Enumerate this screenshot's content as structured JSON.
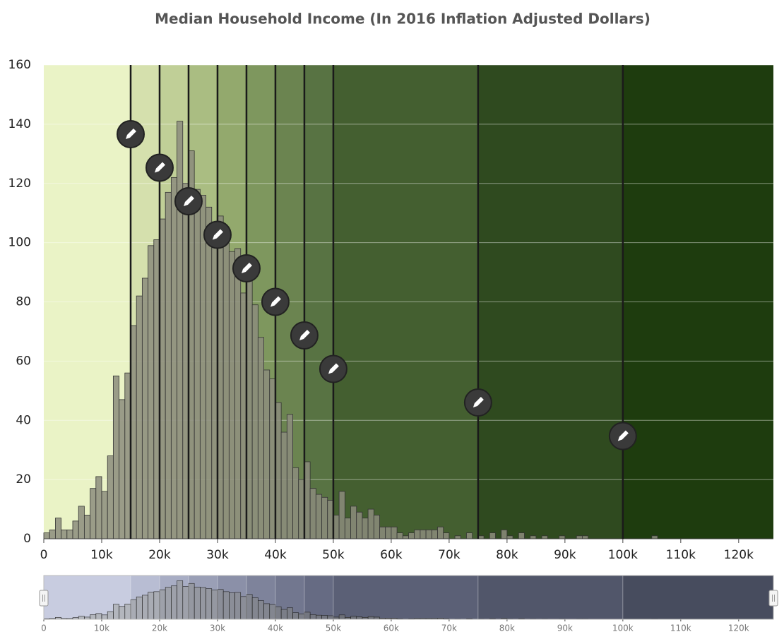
{
  "chart_data": {
    "type": "histogram",
    "title": "Median Household Income (In 2016 Inflation Adjusted Dollars)",
    "bins": [
      0,
      1000,
      2000,
      3000,
      4000,
      5000,
      6000,
      7000,
      8000,
      9000,
      10000,
      11000,
      12000,
      13000,
      14000,
      15000,
      16000,
      17000,
      18000,
      19000,
      20000,
      21000,
      22000,
      23000,
      24000,
      25000,
      26000,
      27000,
      28000,
      29000,
      30000,
      31000,
      32000,
      33000,
      34000,
      35000,
      36000,
      37000,
      38000,
      39000,
      40000,
      41000,
      42000,
      43000,
      44000,
      45000,
      46000,
      47000,
      48000,
      49000,
      50000,
      51000,
      52000,
      53000,
      54000,
      55000,
      56000,
      57000,
      58000,
      59000,
      60000,
      61000,
      62000,
      63000,
      64000,
      65000,
      66000,
      67000,
      68000,
      69000,
      70000,
      71000,
      72000,
      73000,
      74000,
      75000,
      76000,
      77000,
      78000,
      79000,
      80000,
      81000,
      82000,
      83000,
      84000,
      85000,
      86000,
      87000,
      88000,
      89000,
      90000,
      91000,
      92000,
      93000,
      94000,
      95000,
      96000,
      97000,
      98000,
      99000,
      100000,
      101000,
      102000,
      103000,
      104000,
      105000,
      106000,
      107000,
      108000,
      109000,
      110000,
      111000,
      112000,
      113000,
      114000,
      115000,
      116000,
      117000,
      118000,
      119000,
      120000,
      121000,
      122000,
      123000,
      124000,
      125000,
      126000
    ],
    "values": [
      2,
      3,
      7,
      3,
      3,
      6,
      11,
      8,
      17,
      21,
      16,
      28,
      55,
      47,
      56,
      72,
      82,
      88,
      99,
      101,
      108,
      117,
      122,
      141,
      120,
      131,
      118,
      116,
      112,
      107,
      109,
      101,
      97,
      98,
      83,
      91,
      79,
      68,
      57,
      54,
      46,
      36,
      42,
      24,
      20,
      26,
      17,
      15,
      14,
      13,
      8,
      16,
      7,
      11,
      9,
      7,
      10,
      8,
      4,
      4,
      4,
      2,
      1,
      2,
      3,
      3,
      3,
      3,
      4,
      2,
      0,
      1,
      0,
      2,
      0,
      1,
      0,
      2,
      0,
      3,
      1,
      0,
      2,
      0,
      1,
      0,
      1,
      0,
      0,
      1,
      0,
      0,
      1,
      1,
      0,
      0,
      0,
      0,
      0,
      0,
      0,
      0,
      0,
      0,
      0,
      1,
      0,
      0,
      0,
      0,
      0,
      0,
      0,
      0,
      0,
      0,
      0,
      0,
      0,
      0,
      0,
      0,
      0,
      0,
      0,
      0
    ],
    "color": "#8c8c7c",
    "xlim": [
      0,
      126000
    ],
    "ylim": [
      0,
      160
    ],
    "xticks": [
      0,
      {
        "value": 10000,
        "label": "10k"
      },
      {
        "value": 20000,
        "label": "20k"
      },
      {
        "value": 30000,
        "label": "30k"
      },
      {
        "value": 40000,
        "label": "40k"
      },
      {
        "value": 50000,
        "label": "50k"
      },
      {
        "value": 60000,
        "label": "60k"
      },
      {
        "value": 70000,
        "label": "70k"
      },
      {
        "value": 80000,
        "label": "80k"
      },
      {
        "value": 90000,
        "label": "90k"
      },
      {
        "value": 100000,
        "label": "100k"
      },
      {
        "value": 110000,
        "label": "110k"
      },
      {
        "value": 120000,
        "label": "120k"
      }
    ],
    "yticks": [
      0,
      20,
      40,
      60,
      80,
      100,
      120,
      140,
      160
    ],
    "grid": true,
    "breaks": [
      15000,
      20000,
      25000,
      30000,
      35000,
      40000,
      45000,
      50000,
      75000,
      100000
    ],
    "band_colors": [
      "#eaf3c6",
      "#d5e0ad",
      "#c0cf97",
      "#aabd82",
      "#93a96d",
      "#7e975e",
      "#6b8450",
      "#587343",
      "#445f30",
      "#2f4a1f",
      "#1e3c0e"
    ],
    "navigator_colors": [
      "#c8cce0",
      "#b8bdd3",
      "#a8adc4",
      "#9a9fb6",
      "#8b90a8",
      "#7e839b",
      "#72778f",
      "#666b83",
      "#5b6076",
      "#51566a",
      "#474c5e"
    ]
  }
}
